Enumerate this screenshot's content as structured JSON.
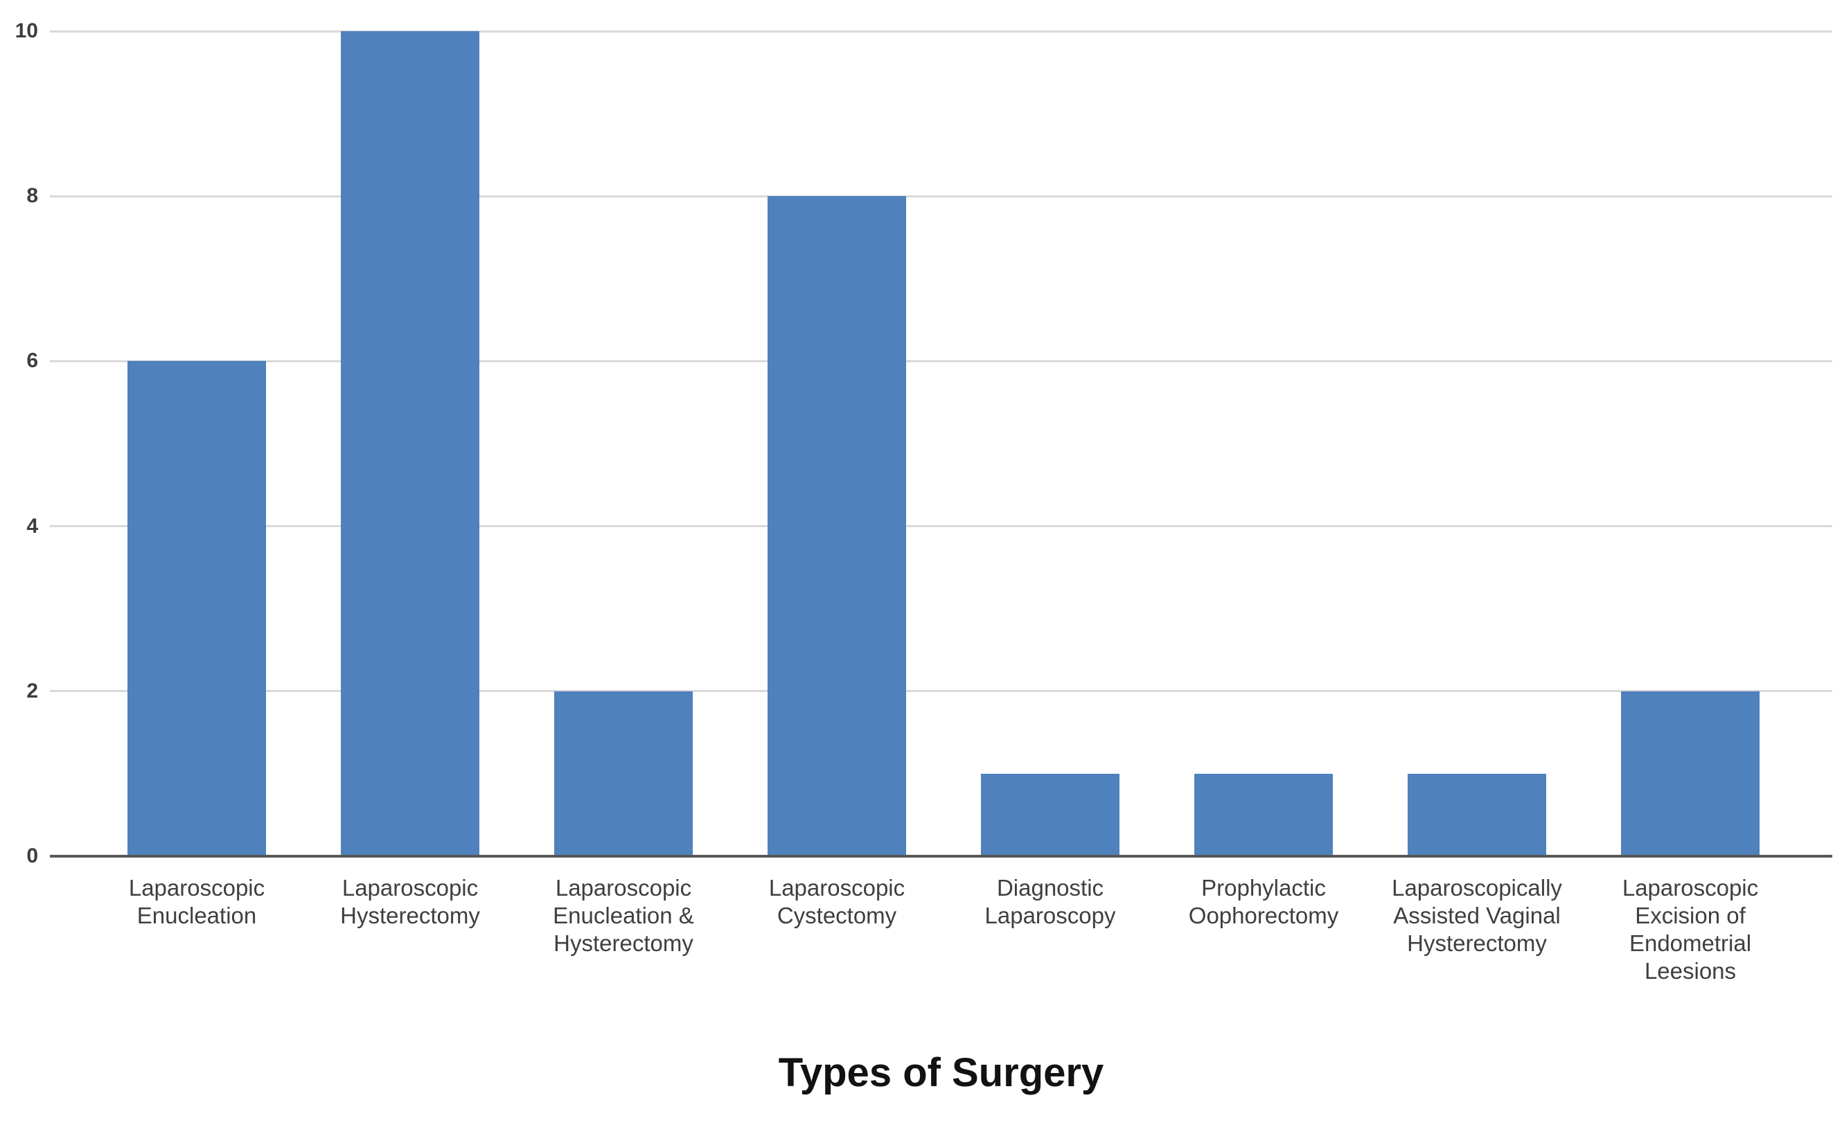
{
  "chart_data": {
    "type": "bar",
    "title": "Types of Surgery",
    "categories": [
      "Laparoscopic\nEnucleation",
      "Laparoscopic\nHysterectomy",
      "Laparoscopic\nEnucleation &\nHysterectomy",
      "Laparoscopic\nCystectomy",
      "Diagnostic\nLaparoscopy",
      "Prophylactic\nOophorectomy",
      "Laparoscopically\nAssisted Vaginal\nHysterectomy",
      "Laparoscopic\nExcision of\nEndometrial\nLeesions"
    ],
    "values": [
      6,
      10,
      2,
      8,
      1,
      1,
      1,
      2
    ],
    "xlabel": "",
    "ylabel": "",
    "ylim": [
      0,
      10
    ],
    "y_ticks": [
      0,
      2,
      4,
      6,
      8,
      10
    ],
    "grid": "horizontal",
    "legend_position": "none",
    "bar_color": "#4f81bd",
    "gridline_color": "#d9d9d9",
    "axis_line_color": "#595959",
    "tick_label_color": "#3d3d3d",
    "category_label_color": "#3f3f3f",
    "title_color": "#121212",
    "background_color": "#ffffff"
  }
}
